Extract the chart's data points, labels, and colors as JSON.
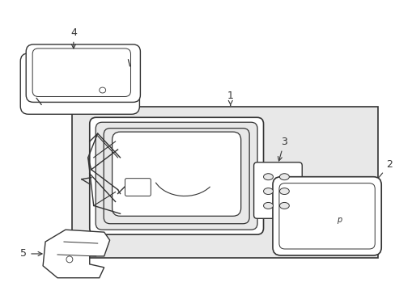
{
  "bg_color": "#ffffff",
  "box_bg": "#e8e8e8",
  "line_color": "#333333",
  "figsize": [
    4.89,
    3.6
  ],
  "dpi": 100
}
